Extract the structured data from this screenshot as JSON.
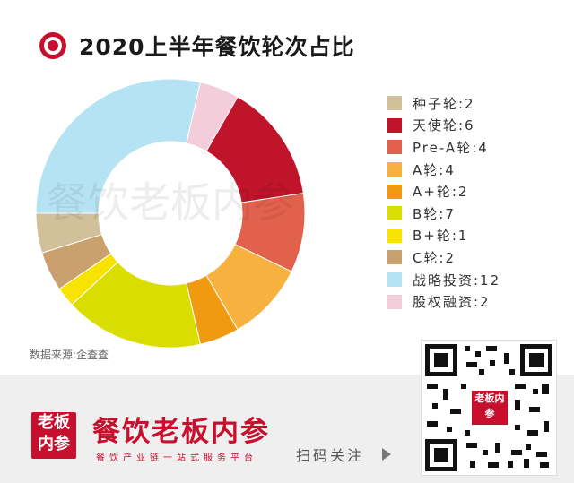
{
  "title": "2020上半年餐饮轮次占比",
  "source": "数据来源:企查查",
  "watermark": "餐饮老板内参",
  "chart_data": {
    "type": "pie",
    "categories": [
      "种子轮",
      "天使轮",
      "Pre-A轮",
      "A轮",
      "A+轮",
      "B轮",
      "B+轮",
      "C轮",
      "战略投资",
      "股权融资"
    ],
    "values": [
      2,
      6,
      4,
      4,
      2,
      7,
      1,
      2,
      12,
      2
    ],
    "legend_labels": [
      "种子轮:2",
      "天使轮:6",
      "Pre-A轮:4",
      "A轮:4",
      "A+轮:2",
      "B轮:7",
      "B+轮:1",
      "C轮:2",
      "战略投资:12",
      "股权融资:2"
    ],
    "colors": [
      "#d2c09a",
      "#c0142a",
      "#e2614c",
      "#f7b13f",
      "#f09a12",
      "#d9dd00",
      "#f8e200",
      "#c9a06e",
      "#b6e3f3",
      "#f3cdd9"
    ],
    "donut": true,
    "legend_position": "right"
  },
  "footer": {
    "logo_text": "老板内参",
    "brand": "餐饮老板内参",
    "slogan": "餐饮产业链一站式服务平台",
    "scan": "扫码关注",
    "qr_badge": "老板内参"
  }
}
